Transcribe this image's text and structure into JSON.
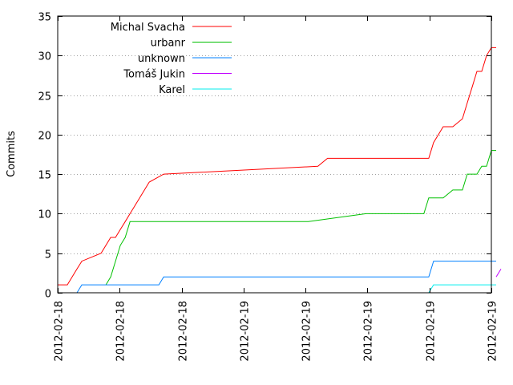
{
  "chart_data": {
    "type": "line",
    "title": "",
    "xlabel": "",
    "ylabel": "Commits",
    "ylim": [
      0,
      35
    ],
    "yticks": [
      0,
      5,
      10,
      15,
      20,
      25,
      30,
      35
    ],
    "xlim": [
      "2012-02-18 00:00",
      "2012-02-19 21:00"
    ],
    "xtick_labels": [
      "2012-02-18",
      "2012-02-18",
      "2012-02-18",
      "2012-02-19",
      "2012-02-19",
      "2012-02-19",
      "2012-02-19",
      "2012-02-19"
    ],
    "grid": "dotted horizontal",
    "legend_position": "top-left",
    "series": [
      {
        "name": "Michal Svacha",
        "color": "#ff0000",
        "points": [
          [
            "2012-02-18 00:00",
            1
          ],
          [
            "2012-02-18 01:00",
            1
          ],
          [
            "2012-02-18 01:30",
            2
          ],
          [
            "2012-02-18 02:00",
            3
          ],
          [
            "2012-02-18 02:30",
            4
          ],
          [
            "2012-02-18 04:30",
            5
          ],
          [
            "2012-02-18 05:00",
            6
          ],
          [
            "2012-02-18 05:30",
            7
          ],
          [
            "2012-02-18 06:00",
            7
          ],
          [
            "2012-02-18 06:30",
            8
          ],
          [
            "2012-02-18 07:00",
            9
          ],
          [
            "2012-02-18 07:30",
            10
          ],
          [
            "2012-02-18 08:00",
            11
          ],
          [
            "2012-02-18 08:30",
            12
          ],
          [
            "2012-02-18 09:00",
            13
          ],
          [
            "2012-02-18 09:30",
            14
          ],
          [
            "2012-02-18 11:00",
            15
          ],
          [
            "2012-02-19 03:00",
            16
          ],
          [
            "2012-02-19 04:00",
            17
          ],
          [
            "2012-02-19 14:30",
            17
          ],
          [
            "2012-02-19 15:00",
            19
          ],
          [
            "2012-02-19 15:30",
            20
          ],
          [
            "2012-02-19 16:00",
            21
          ],
          [
            "2012-02-19 17:00",
            21
          ],
          [
            "2012-02-19 18:00",
            22
          ],
          [
            "2012-02-19 18:30",
            24
          ],
          [
            "2012-02-19 19:00",
            26
          ],
          [
            "2012-02-19 19:30",
            28
          ],
          [
            "2012-02-19 20:00",
            28
          ],
          [
            "2012-02-19 20:30",
            30
          ],
          [
            "2012-02-19 21:00",
            31
          ],
          [
            "2012-02-19 21:30",
            31
          ]
        ]
      },
      {
        "name": "urbanr",
        "color": "#00c000",
        "points": [
          [
            "2012-02-18 05:00",
            1
          ],
          [
            "2012-02-18 05:30",
            2
          ],
          [
            "2012-02-18 06:00",
            4
          ],
          [
            "2012-02-18 06:30",
            6
          ],
          [
            "2012-02-18 07:00",
            7
          ],
          [
            "2012-02-18 07:30",
            9
          ],
          [
            "2012-02-19 02:00",
            9
          ],
          [
            "2012-02-19 08:00",
            10
          ],
          [
            "2012-02-19 14:00",
            10
          ],
          [
            "2012-02-19 14:30",
            12
          ],
          [
            "2012-02-19 16:00",
            12
          ],
          [
            "2012-02-19 17:00",
            13
          ],
          [
            "2012-02-19 18:00",
            13
          ],
          [
            "2012-02-19 18:30",
            15
          ],
          [
            "2012-02-19 19:30",
            15
          ],
          [
            "2012-02-19 20:00",
            16
          ],
          [
            "2012-02-19 20:30",
            16
          ],
          [
            "2012-02-19 21:00",
            18
          ],
          [
            "2012-02-19 21:30",
            18
          ]
        ]
      },
      {
        "name": "unknown",
        "color": "#0080ff",
        "points": [
          [
            "2012-02-18 02:00",
            0
          ],
          [
            "2012-02-18 02:30",
            1
          ],
          [
            "2012-02-18 10:30",
            1
          ],
          [
            "2012-02-18 11:00",
            2
          ],
          [
            "2012-02-19 14:30",
            2
          ],
          [
            "2012-02-19 15:00",
            4
          ],
          [
            "2012-02-19 21:30",
            4
          ]
        ]
      },
      {
        "name": "Tomáš Jukin",
        "color": "#c000ff",
        "points": [
          [
            "2012-02-19 21:30",
            2
          ],
          [
            "2012-02-19 22:00",
            3
          ]
        ]
      },
      {
        "name": "Karel",
        "color": "#00eeee",
        "points": [
          [
            "2012-02-19 14:30",
            0
          ],
          [
            "2012-02-19 15:00",
            1
          ],
          [
            "2012-02-19 21:30",
            1
          ]
        ]
      }
    ]
  }
}
